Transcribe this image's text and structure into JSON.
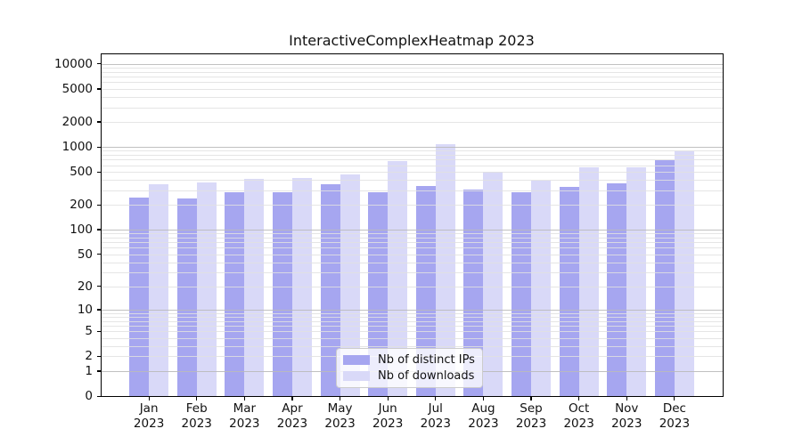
{
  "chart_data": {
    "type": "bar",
    "title": "InteractiveComplexHeatmap 2023",
    "categories": [
      {
        "month": "Jan",
        "year": "2023"
      },
      {
        "month": "Feb",
        "year": "2023"
      },
      {
        "month": "Mar",
        "year": "2023"
      },
      {
        "month": "Apr",
        "year": "2023"
      },
      {
        "month": "May",
        "year": "2023"
      },
      {
        "month": "Jun",
        "year": "2023"
      },
      {
        "month": "Jul",
        "year": "2023"
      },
      {
        "month": "Aug",
        "year": "2023"
      },
      {
        "month": "Sep",
        "year": "2023"
      },
      {
        "month": "Oct",
        "year": "2023"
      },
      {
        "month": "Nov",
        "year": "2023"
      },
      {
        "month": "Dec",
        "year": "2023"
      }
    ],
    "series": [
      {
        "name": "Nb of distinct IPs",
        "color": "#a6a6f0",
        "values": [
          243,
          240,
          287,
          282,
          358,
          284,
          339,
          309,
          281,
          332,
          361,
          697
        ]
      },
      {
        "name": "Nb of downloads",
        "color": "#d9d9f8",
        "values": [
          352,
          373,
          408,
          422,
          470,
          672,
          1085,
          496,
          392,
          572,
          565,
          893
        ]
      }
    ],
    "yscale": "log1p",
    "ylim": [
      0,
      13000
    ],
    "yticks": [
      0,
      1,
      2,
      5,
      10,
      20,
      50,
      100,
      200,
      500,
      1000,
      2000,
      5000,
      10000
    ],
    "grid": true,
    "legend_position": "lower center"
  },
  "colors": {
    "background": "#ffffff",
    "axis": "#000000",
    "grid_major": "#bababa",
    "grid_minor": "#e1e1e1",
    "bar_distinct_ips": "#a6a6f0",
    "bar_downloads": "#d9d9f8"
  }
}
